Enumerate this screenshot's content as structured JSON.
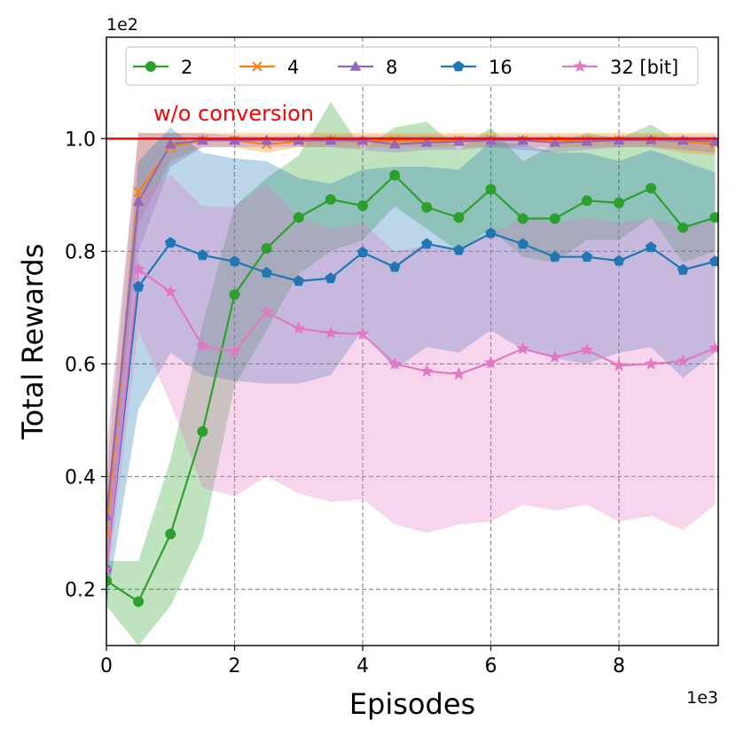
{
  "chart_data": {
    "type": "line",
    "xlabel": "Episodes",
    "ylabel": "Total Rewards",
    "x_offset_label": "1e3",
    "y_offset_label": "1e2",
    "xlim": [
      0,
      9.55
    ],
    "ylim": [
      0.1,
      1.18
    ],
    "xticks": [
      0,
      2,
      4,
      6,
      8
    ],
    "xtick_labels": [
      "0",
      "2",
      "4",
      "6",
      "8"
    ],
    "yticks": [
      0.2,
      0.4,
      0.6,
      0.8,
      1.0
    ],
    "ytick_labels": [
      "0.2",
      "0.4",
      "0.6",
      "0.8",
      "1.0"
    ],
    "grid": true,
    "x": [
      0,
      0.5,
      1,
      1.5,
      2,
      2.5,
      3,
      3.5,
      4,
      4.5,
      5,
      5.5,
      6,
      6.5,
      7,
      7.5,
      8,
      8.5,
      9,
      9.5
    ],
    "reference_line": {
      "y": 1.0,
      "label": "w/o conversion",
      "color": "#ff0000"
    },
    "legend_position": "top",
    "series": [
      {
        "name": "2",
        "color": "#2ca02c",
        "marker": "circle",
        "values": [
          0.215,
          0.178,
          0.298,
          0.48,
          0.723,
          0.805,
          0.86,
          0.892,
          0.881,
          0.935,
          0.878,
          0.86,
          0.91,
          0.858,
          0.858,
          0.89,
          0.886,
          0.912,
          0.842,
          0.86
        ],
        "lower": [
          0.17,
          0.1,
          0.17,
          0.29,
          0.56,
          0.66,
          0.76,
          0.8,
          0.82,
          0.88,
          0.84,
          0.8,
          0.84,
          0.79,
          0.78,
          0.82,
          0.82,
          0.86,
          0.78,
          0.8
        ],
        "upper": [
          0.25,
          0.25,
          0.43,
          0.67,
          0.88,
          0.93,
          0.97,
          1.065,
          0.98,
          1.02,
          1.03,
          0.98,
          1.02,
          0.96,
          0.99,
          1.01,
          1.0,
          1.025,
          0.99,
          1.0
        ]
      },
      {
        "name": "4",
        "color": "#ff7f0e",
        "marker": "x",
        "values": [
          0.3,
          0.905,
          0.985,
          0.997,
          0.997,
          0.99,
          0.995,
          0.997,
          0.995,
          0.997,
          0.995,
          0.997,
          0.998,
          0.997,
          0.997,
          0.997,
          0.997,
          0.997,
          0.995,
          0.99
        ],
        "lower": [
          0.2,
          0.85,
          0.96,
          0.985,
          0.985,
          0.975,
          0.985,
          0.985,
          0.985,
          0.985,
          0.985,
          0.985,
          0.985,
          0.985,
          0.985,
          0.985,
          0.985,
          0.985,
          0.975,
          0.97
        ],
        "upper": [
          0.4,
          1.01,
          1.01,
          1.01,
          1.01,
          1.01,
          1.01,
          1.01,
          1.01,
          1.01,
          1.01,
          1.01,
          1.01,
          1.01,
          1.01,
          1.01,
          1.01,
          1.01,
          1.01,
          1.01
        ]
      },
      {
        "name": "8",
        "color": "#9467bd",
        "marker": "triangle",
        "values": [
          0.33,
          0.888,
          0.99,
          0.997,
          0.997,
          0.997,
          0.997,
          0.997,
          0.997,
          0.99,
          0.993,
          0.995,
          0.997,
          0.997,
          0.993,
          0.995,
          0.997,
          0.998,
          0.997,
          0.995
        ],
        "lower": [
          0.22,
          0.8,
          0.95,
          0.985,
          0.985,
          0.985,
          0.985,
          0.985,
          0.98,
          0.975,
          0.98,
          0.98,
          0.985,
          0.98,
          0.975,
          0.98,
          0.985,
          0.985,
          0.98,
          0.975
        ],
        "upper": [
          0.45,
          1.01,
          1.01,
          1.01,
          1.005,
          1.005,
          1.005,
          1.005,
          1.005,
          1.005,
          1.005,
          1.005,
          1.005,
          1.005,
          1.005,
          1.005,
          1.005,
          1.005,
          1.005,
          1.005
        ]
      },
      {
        "name": "16",
        "color": "#1f77b4",
        "marker": "pentagon",
        "values": [
          0.235,
          0.737,
          0.815,
          0.793,
          0.782,
          0.762,
          0.747,
          0.752,
          0.798,
          0.772,
          0.813,
          0.802,
          0.832,
          0.813,
          0.79,
          0.79,
          0.783,
          0.807,
          0.767,
          0.782
        ],
        "lower": [
          0.17,
          0.52,
          0.62,
          0.58,
          0.57,
          0.565,
          0.565,
          0.58,
          0.66,
          0.59,
          0.63,
          0.62,
          0.66,
          0.625,
          0.61,
          0.6,
          0.62,
          0.63,
          0.575,
          0.62
        ],
        "upper": [
          0.3,
          0.96,
          1.02,
          0.975,
          0.965,
          0.96,
          0.93,
          0.92,
          0.945,
          0.95,
          0.95,
          0.945,
          0.995,
          0.99,
          0.975,
          0.975,
          0.96,
          0.98,
          0.96,
          0.94
        ]
      },
      {
        "name": "32 [bit]",
        "color": "#e377c2",
        "marker": "star",
        "values": [
          0.235,
          0.768,
          0.728,
          0.632,
          0.622,
          0.692,
          0.663,
          0.655,
          0.653,
          0.6,
          0.587,
          0.582,
          0.602,
          0.627,
          0.612,
          0.625,
          0.597,
          0.6,
          0.605,
          0.628
        ],
        "lower": [
          0.2,
          0.66,
          0.53,
          0.38,
          0.365,
          0.4,
          0.37,
          0.355,
          0.36,
          0.315,
          0.3,
          0.315,
          0.32,
          0.35,
          0.34,
          0.35,
          0.32,
          0.33,
          0.305,
          0.35
        ],
        "upper": [
          0.27,
          0.9,
          0.935,
          0.88,
          0.88,
          0.92,
          0.86,
          0.84,
          0.85,
          0.8,
          0.81,
          0.8,
          0.83,
          0.86,
          0.85,
          0.86,
          0.85,
          0.86,
          0.84,
          0.86
        ]
      }
    ]
  }
}
